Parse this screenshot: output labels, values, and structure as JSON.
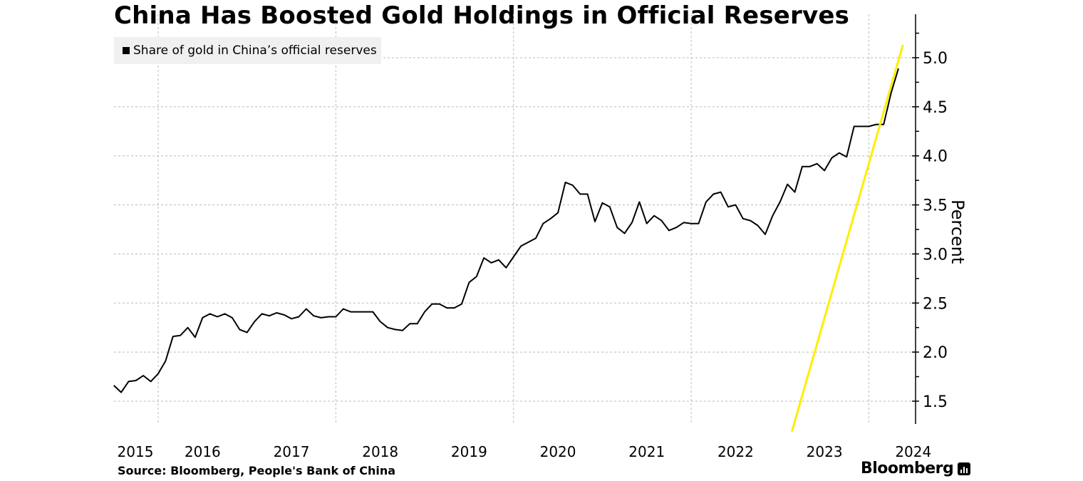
{
  "header": {
    "title": "China Has Boosted Gold Holdings in Official Reserves"
  },
  "footer": {
    "source": "Source: Bloomberg, People's Bank of China",
    "brand": "Bloomberg"
  },
  "colors": {
    "line": "#000000",
    "annotation": "#ffee00",
    "grid": "#bbbbbb"
  },
  "chart_data": {
    "type": "line",
    "title": "China Has Boosted Gold Holdings in Official Reserves",
    "xlabel": "",
    "ylabel": "Percent",
    "ylim": [
      1.27,
      5.45
    ],
    "yticks": [
      "1.5",
      "2.0",
      "2.5",
      "3.0",
      "3.5",
      "4.0",
      "4.5",
      "5.0"
    ],
    "xticks": [
      "2015",
      "2016",
      "2017",
      "2018",
      "2019",
      "2020",
      "2021",
      "2022",
      "2023",
      "2024"
    ],
    "grid": true,
    "legend_position": "top-left",
    "x_start": "2015-07",
    "x_frequency": "monthly",
    "series": [
      {
        "name": "Share of gold in China’s official reserves",
        "values": [
          1.66,
          1.59,
          1.7,
          1.71,
          1.76,
          1.7,
          1.78,
          1.91,
          2.16,
          2.17,
          2.25,
          2.15,
          2.35,
          2.39,
          2.36,
          2.39,
          2.35,
          2.23,
          2.2,
          2.31,
          2.39,
          2.37,
          2.4,
          2.38,
          2.34,
          2.36,
          2.44,
          2.37,
          2.35,
          2.36,
          2.36,
          2.44,
          2.41,
          2.41,
          2.41,
          2.41,
          2.31,
          2.25,
          2.23,
          2.22,
          2.29,
          2.29,
          2.41,
          2.49,
          2.49,
          2.45,
          2.45,
          2.49,
          2.71,
          2.77,
          2.96,
          2.91,
          2.94,
          2.86,
          2.97,
          3.08,
          3.12,
          3.16,
          3.31,
          3.36,
          3.42,
          3.73,
          3.7,
          3.61,
          3.61,
          3.33,
          3.52,
          3.48,
          3.27,
          3.21,
          3.32,
          3.53,
          3.31,
          3.39,
          3.34,
          3.24,
          3.27,
          3.32,
          3.31,
          3.31,
          3.53,
          3.61,
          3.63,
          3.48,
          3.5,
          3.36,
          3.34,
          3.29,
          3.2,
          3.39,
          3.53,
          3.71,
          3.63,
          3.89,
          3.89,
          3.92,
          3.85,
          3.98,
          4.03,
          3.99,
          4.3,
          4.3,
          4.3,
          4.32,
          4.32,
          4.64,
          4.89
        ]
      }
    ],
    "annotation_line": {
      "from": {
        "month_index": 91.6,
        "value": 1.19
      },
      "to": {
        "month_index": 106.6,
        "value": 5.13
      }
    }
  }
}
